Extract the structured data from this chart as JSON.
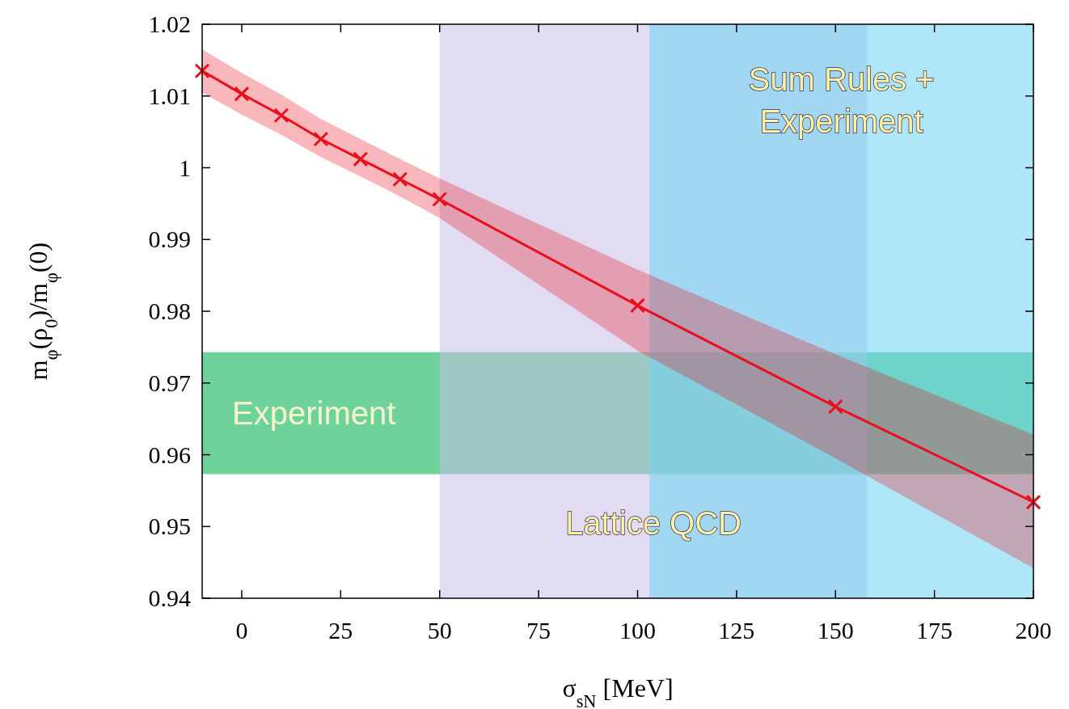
{
  "chart_data": {
    "type": "line",
    "xlabel": "σ$_{sN}$ [MeV]",
    "ylabel": "m$_{φ}$(ρ$_{0}$)/m$_{φ}$(0)",
    "x": [
      -10,
      0,
      10,
      20,
      30,
      40,
      50,
      100,
      150,
      200
    ],
    "series": [
      {
        "color": "#e8101c",
        "values": [
          1.0135,
          1.0103,
          1.0073,
          1.004,
          1.0012,
          0.9984,
          0.9956,
          0.9808,
          0.9667,
          0.9534
        ],
        "lower": [
          1.0105,
          1.0074,
          1.0046,
          1.0015,
          0.9988,
          0.996,
          0.993,
          0.9745,
          0.9595,
          0.9442
        ],
        "upper": [
          1.0165,
          1.0132,
          1.0102,
          1.0068,
          1.004,
          1.0012,
          0.9985,
          0.9858,
          0.974,
          0.9628
        ]
      }
    ],
    "marker": "cross",
    "line_style": "solid",
    "grid": false,
    "xlim": [
      -10,
      200
    ],
    "xticks": [
      0,
      25,
      50,
      75,
      100,
      125,
      150,
      175,
      200
    ],
    "ylim": [
      0.94,
      1.02
    ],
    "yticks": [
      0.94,
      0.95,
      0.96,
      0.97,
      0.98,
      0.99,
      1,
      1.01,
      1.02
    ],
    "bands": [
      {
        "axis": "y",
        "from": 0.9573,
        "to": 0.9743,
        "label": "Experiment",
        "color": "#3cc47a"
      },
      {
        "axis": "x",
        "from": 50,
        "to": 158,
        "label": "Lattice QCD",
        "color": "#c9bfe8"
      },
      {
        "axis": "x",
        "from": 103,
        "to": 200,
        "label": "Sum Rules + Experiment",
        "color": "#6fd3f2"
      }
    ]
  }
}
